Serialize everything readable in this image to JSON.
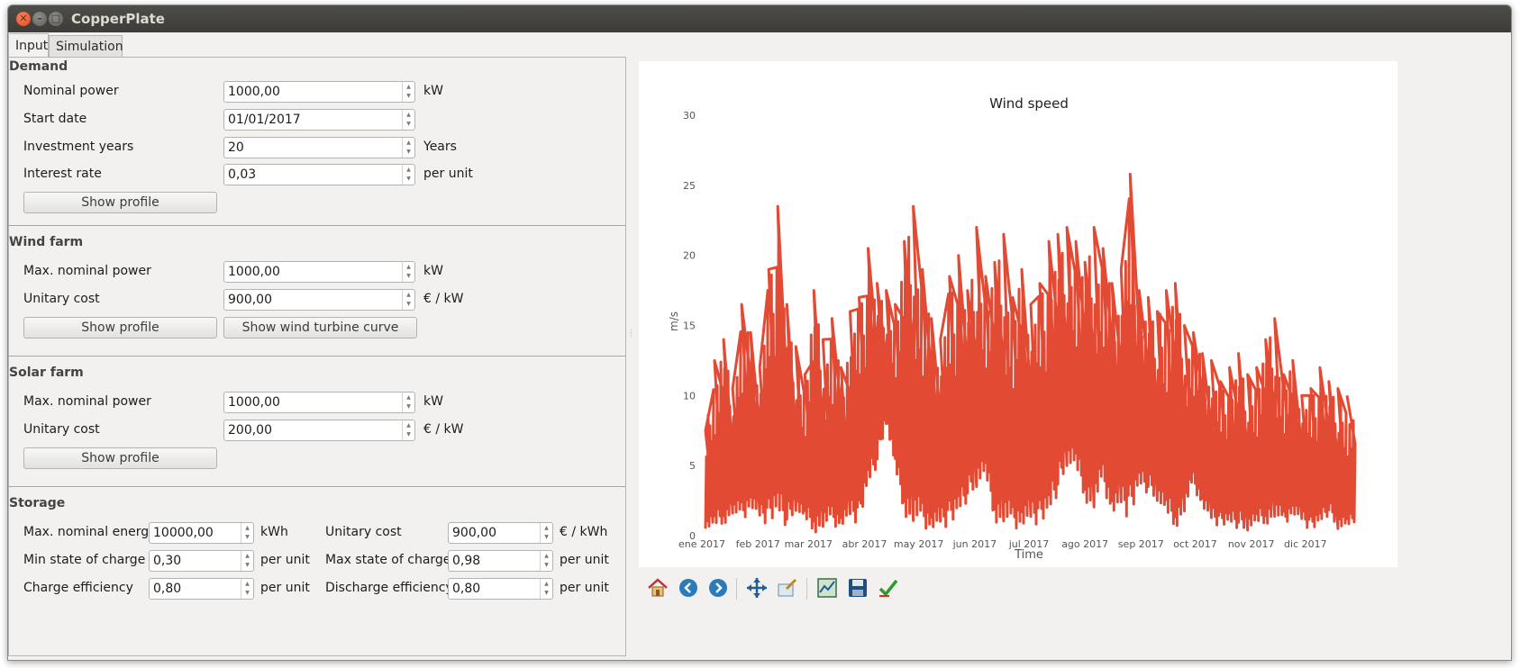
{
  "window": {
    "title": "CopperPlate"
  },
  "tabs": [
    {
      "label": "Input"
    },
    {
      "label": "Simulation"
    }
  ],
  "demand": {
    "title": "Demand",
    "nominal_power": {
      "label": "Nominal power",
      "value": "1000,00",
      "unit": "kW"
    },
    "start_date": {
      "label": "Start date",
      "value": "01/01/2017"
    },
    "investment_years": {
      "label": "Investment years",
      "value": "20",
      "unit": "Years"
    },
    "interest_rate": {
      "label": "Interest rate",
      "value": "0,03",
      "unit": "per unit"
    },
    "show_profile": "Show profile"
  },
  "wind": {
    "title": "Wind farm",
    "max_power": {
      "label": "Max. nominal power",
      "value": "1000,00",
      "unit": "kW"
    },
    "unitary_cost": {
      "label": "Unitary cost",
      "value": "900,00",
      "unit": "€ / kW"
    },
    "show_profile": "Show profile",
    "show_curve": "Show wind turbine curve"
  },
  "solar": {
    "title": "Solar farm",
    "max_power": {
      "label": "Max. nominal power",
      "value": "1000,00",
      "unit": "kW"
    },
    "unitary_cost": {
      "label": "Unitary cost",
      "value": "200,00",
      "unit": "€ / kW"
    },
    "show_profile": "Show profile"
  },
  "storage": {
    "title": "Storage",
    "max_energy": {
      "label": "Max. nominal energy",
      "value": "10000,00",
      "unit": "kWh"
    },
    "unitary_cost": {
      "label": "Unitary cost",
      "value": "900,00",
      "unit": "€ / kWh"
    },
    "min_soc": {
      "label": "Min state of charge",
      "value": "0,30",
      "unit": "per unit"
    },
    "max_soc": {
      "label": "Max state of charge",
      "value": "0,98",
      "unit": "per unit"
    },
    "charge_eff": {
      "label": "Charge efficiency",
      "value": "0,80",
      "unit": "per unit"
    },
    "discharge_eff": {
      "label": "Discharge efficiency",
      "value": "0,80",
      "unit": "per unit"
    }
  },
  "toolbar": {
    "icons": [
      "home-icon",
      "back-icon",
      "forward-icon",
      "pan-icon",
      "zoom-icon",
      "subplots-icon",
      "save-icon",
      "edit-curves-icon"
    ]
  },
  "chart_data": {
    "type": "line",
    "title": "Wind speed",
    "xlabel": "Time",
    "ylabel": "m/s",
    "ylim": [
      0,
      30
    ],
    "yticks": [
      "0",
      "5",
      "10",
      "15",
      "20",
      "25",
      "30"
    ],
    "xticks": [
      "ene 2017",
      "feb 2017",
      "mar 2017",
      "abr 2017",
      "may 2017",
      "jun 2017",
      "jul 2017",
      "ago 2017",
      "sep 2017",
      "oct 2017",
      "nov 2017",
      "dic 2017"
    ],
    "color": "#e24a33",
    "grid": false,
    "series": [
      {
        "x": [
          "2017-01-03",
          "2017-01-08",
          "2017-01-13",
          "2017-01-18",
          "2017-01-23",
          "2017-01-28",
          "2017-02-02",
          "2017-02-07",
          "2017-02-12",
          "2017-02-17",
          "2017-02-22",
          "2017-02-27",
          "2017-03-04",
          "2017-03-09",
          "2017-03-14",
          "2017-03-19",
          "2017-03-24",
          "2017-03-29",
          "2017-04-03",
          "2017-04-08",
          "2017-04-13",
          "2017-04-18",
          "2017-04-23",
          "2017-04-28",
          "2017-05-03",
          "2017-05-08",
          "2017-05-13",
          "2017-05-18",
          "2017-05-23",
          "2017-05-28",
          "2017-06-02",
          "2017-06-07",
          "2017-06-12",
          "2017-06-17",
          "2017-06-22",
          "2017-06-27",
          "2017-07-02",
          "2017-07-07",
          "2017-07-12",
          "2017-07-17",
          "2017-07-22",
          "2017-07-27",
          "2017-08-01",
          "2017-08-06",
          "2017-08-11",
          "2017-08-16",
          "2017-08-21",
          "2017-08-26",
          "2017-08-31",
          "2017-09-05",
          "2017-09-10",
          "2017-09-15",
          "2017-09-20",
          "2017-09-25",
          "2017-09-30",
          "2017-10-05",
          "2017-10-10",
          "2017-10-15",
          "2017-10-20",
          "2017-10-25",
          "2017-10-30",
          "2017-11-04",
          "2017-11-09",
          "2017-11-14",
          "2017-11-19",
          "2017-11-24",
          "2017-11-29",
          "2017-12-04",
          "2017-12-09",
          "2017-12-14",
          "2017-12-19",
          "2017-12-24",
          "2017-12-29"
        ],
        "min": [
          0.5,
          0.4,
          0.8,
          1.5,
          0.9,
          2.0,
          1.2,
          0.7,
          1.5,
          0.6,
          1.8,
          0.9,
          0.2,
          0.5,
          0.7,
          0.6,
          1.2,
          0.8,
          3.5,
          5.0,
          8.0,
          4.5,
          1.5,
          0.8,
          0.6,
          0.4,
          0.7,
          0.6,
          1.5,
          2.5,
          3.5,
          4.0,
          1.0,
          0.8,
          0.5,
          0.6,
          1.0,
          0.7,
          1.5,
          3.0,
          5.0,
          4.5,
          2.5,
          1.8,
          3.5,
          1.5,
          2.0,
          1.0,
          3.5,
          3.0,
          2.5,
          1.2,
          0.5,
          1.6,
          3.5,
          2.0,
          1.0,
          0.6,
          0.8,
          0.5,
          0.4,
          0.6,
          0.8,
          1.2,
          0.7,
          1.5,
          1.0,
          0.3,
          0.8,
          1.5,
          0.5,
          0.4,
          1.0
        ],
        "max": [
          7.5,
          12.5,
          14.0,
          10.5,
          16.5,
          14.5,
          12.0,
          19.0,
          23.5,
          16.5,
          13.5,
          11.5,
          17.5,
          14.0,
          15.5,
          12.0,
          16.0,
          17.0,
          20.5,
          18.0,
          17.5,
          16.5,
          21.0,
          23.5,
          19.0,
          15.5,
          14.0,
          18.5,
          20.0,
          17.5,
          22.0,
          18.5,
          19.5,
          21.5,
          17.0,
          19.0,
          16.5,
          18.0,
          21.0,
          21.5,
          22.0,
          21.0,
          19.5,
          22.0,
          20.5,
          18.0,
          19.0,
          25.8,
          17.5,
          17.0,
          16.0,
          17.5,
          18.0,
          15.0,
          14.5,
          13.0,
          12.5,
          11.0,
          12.0,
          13.0,
          11.5,
          12.0,
          14.0,
          15.5,
          11.5,
          12.5,
          10.0,
          10.5,
          12.0,
          11.0,
          10.5,
          10.0,
          8.5
        ]
      }
    ]
  }
}
